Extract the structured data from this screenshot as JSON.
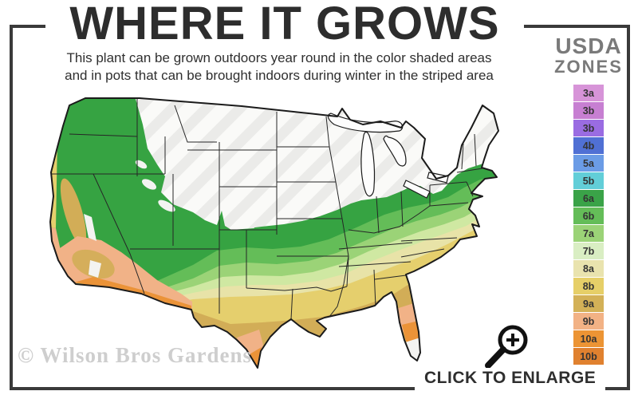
{
  "page": {
    "background": "#ffffff",
    "frame_color": "#3a3a3a"
  },
  "header": {
    "title": "WHERE IT GROWS",
    "subtitle_line1": "This plant can be grown outdoors year round in the color shaded areas",
    "subtitle_line2": "and in pots that can be brought indoors during winter in the striped area"
  },
  "legend": {
    "heading_line1": "USDA",
    "heading_line2": "ZONES",
    "zones": [
      {
        "label": "3a",
        "color": "#d794d8"
      },
      {
        "label": "3b",
        "color": "#c77fd2"
      },
      {
        "label": "3b",
        "color": "#9a6ce2"
      },
      {
        "label": "4b",
        "color": "#5070d4"
      },
      {
        "label": "5a",
        "color": "#6b9ce6"
      },
      {
        "label": "5b",
        "color": "#62ced8"
      },
      {
        "label": "6a",
        "color": "#3aa348"
      },
      {
        "label": "6b",
        "color": "#64bd58"
      },
      {
        "label": "7a",
        "color": "#9bd377"
      },
      {
        "label": "7b",
        "color": "#d9eec3"
      },
      {
        "label": "8a",
        "color": "#e9e3ae"
      },
      {
        "label": "8b",
        "color": "#e6cf68"
      },
      {
        "label": "9a",
        "color": "#d3b157"
      },
      {
        "label": "9b",
        "color": "#f2b285"
      },
      {
        "label": "10a",
        "color": "#ec9434"
      },
      {
        "label": "10b",
        "color": "#e0812f"
      }
    ]
  },
  "map": {
    "description": "USDA hardiness zone map of the continental United States",
    "colors": {
      "zone6a": "#36a342",
      "zone6b": "#64bd58",
      "zone7a": "#9bd377",
      "zone7b": "#cfe8a2",
      "zone8a": "#e8e3a8",
      "zone8b": "#e5cf6d",
      "zone9a": "#d2ad57",
      "zone9b": "#f1b287",
      "zone10a": "#eb9338",
      "stripe_white": "#fafaf8",
      "stripe_gray": "#ebebe9",
      "out_of_range": "#f3f3f1",
      "lake_fill": "#fdfdfd",
      "outline": "#1b1b1b",
      "state_line": "#262626"
    }
  },
  "footer": {
    "enlarge_label": "CLICK TO ENLARGE",
    "watermark": "© Wilson Bros Gardens"
  }
}
